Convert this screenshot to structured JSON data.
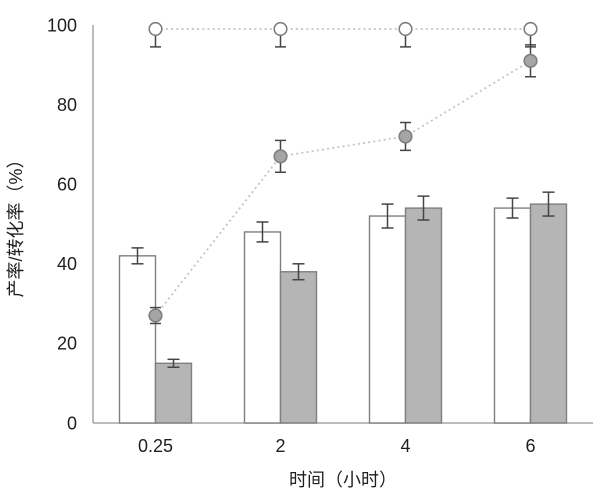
{
  "chart_data": {
    "type": "combo-bar-line",
    "title": "",
    "xlabel": "时间（小时）",
    "ylabel": "产率/转化率（%）",
    "categories": [
      "0.25",
      "2",
      "4",
      "6"
    ],
    "ylim": [
      0,
      100
    ],
    "yticks": [
      0,
      20,
      40,
      60,
      80,
      100
    ],
    "grid": "off",
    "legend": "none",
    "bar_series": [
      {
        "name": "white-bars",
        "values": [
          42,
          48,
          52,
          54
        ],
        "errors": [
          2,
          2.5,
          3,
          2.5
        ],
        "fill": "#ffffff"
      },
      {
        "name": "gray-bars",
        "values": [
          15,
          38,
          54,
          55
        ],
        "errors": [
          1,
          2,
          3,
          3
        ],
        "fill": "#b5b5b5"
      }
    ],
    "line_series": [
      {
        "name": "open-circle-line",
        "marker": "open",
        "values": [
          99,
          99,
          99,
          99
        ],
        "errors": [
          4.5,
          4.5,
          4.5,
          4.5
        ],
        "error_direction": "down",
        "marker_fill": "#ffffff"
      },
      {
        "name": "filled-circle-line",
        "marker": "filled",
        "values": [
          27,
          67,
          72,
          91
        ],
        "errors": [
          2,
          4,
          3.5,
          4
        ],
        "error_direction": "both",
        "marker_fill": "#a5a5a5"
      }
    ],
    "colors": {
      "bar_stroke": "#7f7f7f",
      "marker_stroke": "#7f7f7f",
      "dotted_line": "#c4c4c4",
      "error_bar": "#454545",
      "axis": "#a6a6a6",
      "text": "#1f1f1f"
    }
  }
}
